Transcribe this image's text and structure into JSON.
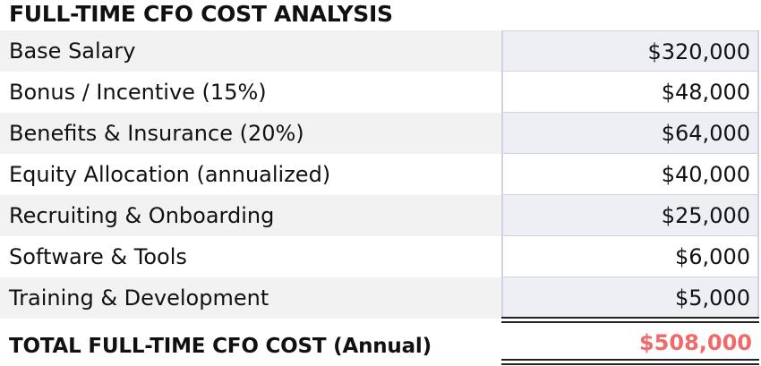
{
  "title": "FULL-TIME CFO COST ANALYSIS",
  "rows": [
    {
      "label": "Base Salary",
      "value": "$320,000"
    },
    {
      "label": "Bonus / Incentive (15%)",
      "value": "$48,000"
    },
    {
      "label": "Benefits & Insurance (20%)",
      "value": "$64,000"
    },
    {
      "label": "Equity Allocation (annualized)",
      "value": "$40,000"
    },
    {
      "label": "Recruiting & Onboarding",
      "value": "$25,000"
    },
    {
      "label": "Software & Tools",
      "value": "$6,000"
    },
    {
      "label": "Training & Development",
      "value": "$5,000"
    }
  ],
  "total": {
    "label": "TOTAL FULL-TIME CFO COST (Annual)",
    "value": "$508,000"
  },
  "colors": {
    "total_value": "#f06a6a",
    "row_shade": "#f2f2f2",
    "cell_border": "#cfd3e0"
  }
}
